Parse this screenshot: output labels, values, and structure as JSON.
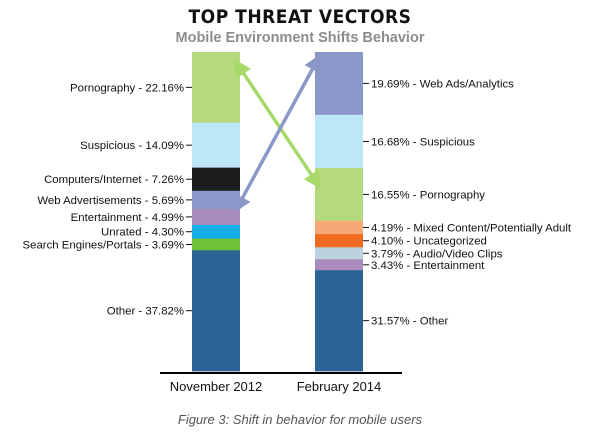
{
  "chart_data": {
    "type": "bar",
    "subtype": "stacked-100",
    "title": "TOP THREAT VECTORS",
    "subtitle": "Mobile Environment Shifts Behavior",
    "caption": "Figure 3: Shift in behavior for mobile users",
    "categories": [
      "November 2012",
      "February 2014"
    ],
    "ylim": [
      0,
      100
    ],
    "grid": false,
    "legend": "none",
    "stacks": [
      {
        "category": "November 2012",
        "segments": [
          {
            "name": "Pornography",
            "value": 22.16,
            "label": "Pornography - 22.16%",
            "color": "#b5da7e"
          },
          {
            "name": "Suspicious",
            "value": 14.09,
            "label": "Suspicious - 14.09%",
            "color": "#bde6f6"
          },
          {
            "name": "Computers/Internet",
            "value": 7.26,
            "label": "Computers/Internet - 7.26%",
            "color": "#1c1c1c"
          },
          {
            "name": "Web Advertisements",
            "value": 5.69,
            "label": "Web Advertisements - 5.69%",
            "color": "#8b97c9"
          },
          {
            "name": "Entertainment",
            "value": 4.99,
            "label": "Entertainment - 4.99%",
            "color": "#a98bbd"
          },
          {
            "name": "Unrated",
            "value": 4.3,
            "label": "Unrated - 4.30%",
            "color": "#16aee6"
          },
          {
            "name": "Search Engines/Portals",
            "value": 3.69,
            "label": "Search Engines/Portals - 3.69%",
            "color": "#6ec239"
          },
          {
            "name": "Other",
            "value": 37.82,
            "label": "Other - 37.82%",
            "color": "#2b6394"
          }
        ]
      },
      {
        "category": "February 2014",
        "segments": [
          {
            "name": "Web Ads/Analytics",
            "value": 19.69,
            "label": "19.69% - Web Ads/Analytics",
            "color": "#8b97c9"
          },
          {
            "name": "Suspicious",
            "value": 16.68,
            "label": "16.68% - Suspicious",
            "color": "#bde6f6"
          },
          {
            "name": "Pornography",
            "value": 16.55,
            "label": "16.55% - Pornography",
            "color": "#b5da7e"
          },
          {
            "name": "Mixed Content/Potentially Adult",
            "value": 4.19,
            "label": "4.19% - Mixed Content/Potentially Adult",
            "color": "#f6a878"
          },
          {
            "name": "Uncategorized",
            "value": 4.1,
            "label": "4.10% - Uncategorized",
            "color": "#f06a1f"
          },
          {
            "name": "Audio/Video Clips",
            "value": 3.79,
            "label": "3.79% - Audio/Video Clips",
            "color": "#bcd2de"
          },
          {
            "name": "Entertainment",
            "value": 3.43,
            "label": "3.43% - Entertainment",
            "color": "#a98bbd"
          },
          {
            "name": "Other",
            "value": 31.57,
            "label": "31.57% - Other",
            "color": "#2b6394"
          }
        ]
      }
    ],
    "arrows": [
      {
        "from": "November 2012",
        "from_segment": "Pornography",
        "to": "February 2014",
        "to_segment": "Pornography",
        "color": "#a6d86a"
      },
      {
        "from": "November 2012",
        "from_segment": "Web Advertisements",
        "to": "February 2014",
        "to_segment": "Web Ads/Analytics",
        "color": "#8b97c9"
      }
    ]
  }
}
